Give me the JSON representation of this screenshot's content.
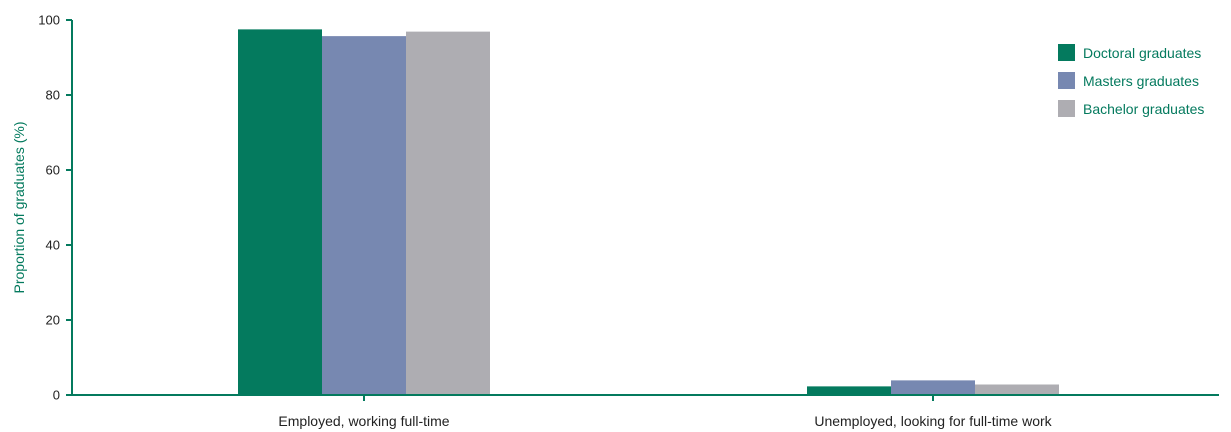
{
  "chart_data": {
    "type": "bar",
    "categories": [
      "Employed, working full-time",
      "Unemployed, looking for full-time work"
    ],
    "series": [
      {
        "name": "Doctoral graduates",
        "values": [
          97.5,
          2.3
        ],
        "color": "#047a5e"
      },
      {
        "name": "Masters graduates",
        "values": [
          95.7,
          3.9
        ],
        "color": "#7788b1"
      },
      {
        "name": "Bachelor graduates",
        "values": [
          96.9,
          2.8
        ],
        "color": "#aeadb2"
      }
    ],
    "title": "",
    "xlabel": "",
    "ylabel": "Proportion of graduates (%)",
    "ylim": [
      0,
      100
    ],
    "yticks": [
      0,
      20,
      40,
      60,
      80,
      100
    ],
    "grid": false,
    "legend_position": "top-right",
    "accent_color": "#047a5e",
    "text_color": "#222222"
  }
}
